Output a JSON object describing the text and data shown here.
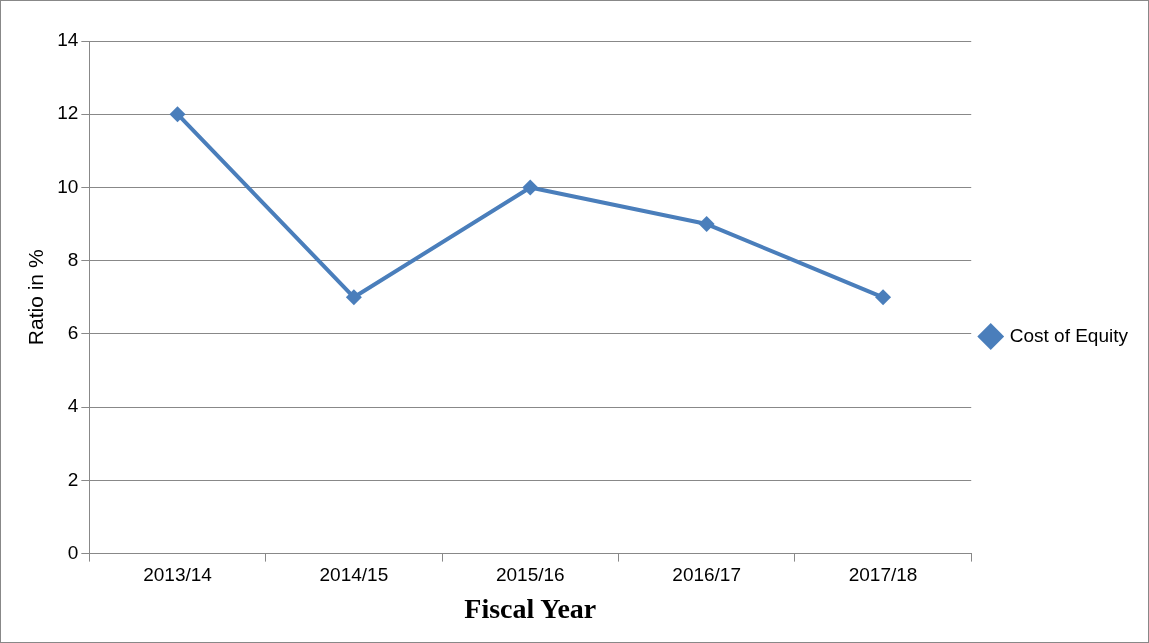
{
  "chart_data": {
    "type": "line",
    "xlabel": "Fiscal Year",
    "ylabel": "Ratio in %",
    "categories": [
      "2013/14",
      "2014/15",
      "2015/16",
      "2016/17",
      "2017/18"
    ],
    "series": [
      {
        "name": "Cost of Equity",
        "color": "#4a7ebb",
        "values": [
          12,
          7,
          10,
          9,
          7
        ]
      }
    ],
    "ylim": [
      0,
      14
    ],
    "yticks": [
      0,
      2,
      4,
      6,
      8,
      10,
      12,
      14
    ],
    "grid": "y",
    "legend": "right",
    "marker": "diamond",
    "line_style": "solid"
  }
}
